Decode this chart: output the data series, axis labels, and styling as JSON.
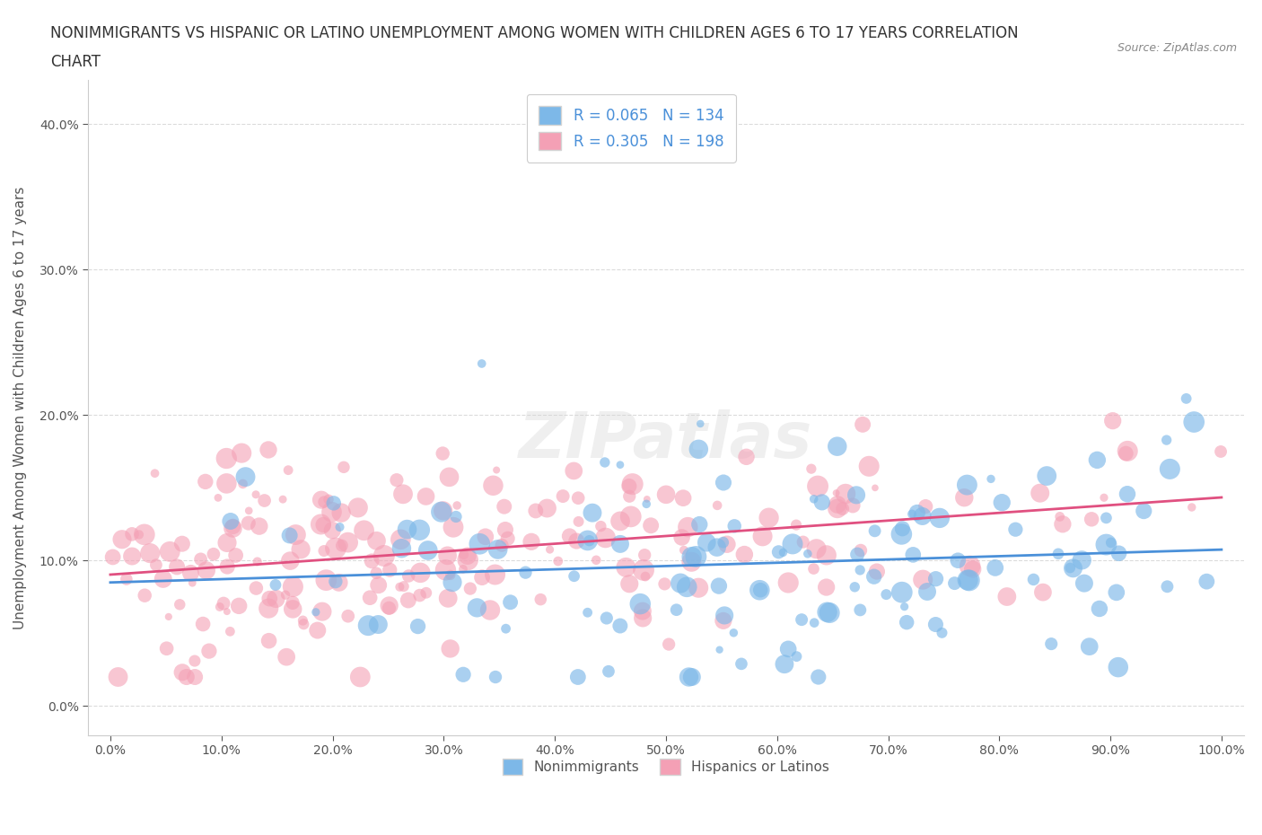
{
  "title_line1": "NONIMMIGRANTS VS HISPANIC OR LATINO UNEMPLOYMENT AMONG WOMEN WITH CHILDREN AGES 6 TO 17 YEARS CORRELATION",
  "title_line2": "CHART",
  "source": "Source: ZipAtlas.com",
  "xlabel": "",
  "ylabel": "Unemployment Among Women with Children Ages 6 to 17 years",
  "xlim": [
    -2,
    102
  ],
  "ylim": [
    -2,
    43
  ],
  "xticks": [
    0,
    10,
    20,
    30,
    40,
    50,
    60,
    70,
    80,
    90,
    100
  ],
  "yticks": [
    0,
    10,
    20,
    30,
    40
  ],
  "xtick_labels": [
    "0.0%",
    "10.0%",
    "20.0%",
    "30.0%",
    "40.0%",
    "50.0%",
    "60.0%",
    "70.0%",
    "80.0%",
    "90.0%",
    "100.0%"
  ],
  "ytick_labels": [
    "0.0%",
    "10.0%",
    "20.0%",
    "30.0%",
    "40.0%"
  ],
  "blue_color": "#7db8e8",
  "pink_color": "#f4a0b5",
  "trend_blue": "#4a90d9",
  "trend_pink": "#e05080",
  "R_blue": 0.065,
  "N_blue": 134,
  "R_pink": 0.305,
  "N_pink": 198,
  "legend_label_blue": "Nonimmigrants",
  "legend_label_pink": "Hispanics or Latinos",
  "watermark": "ZIPatlas",
  "grid_color": "#cccccc",
  "background": "#ffffff",
  "title_color": "#333333",
  "axis_color": "#555555",
  "legend_text_color": "#4a90d9",
  "seed": 42
}
